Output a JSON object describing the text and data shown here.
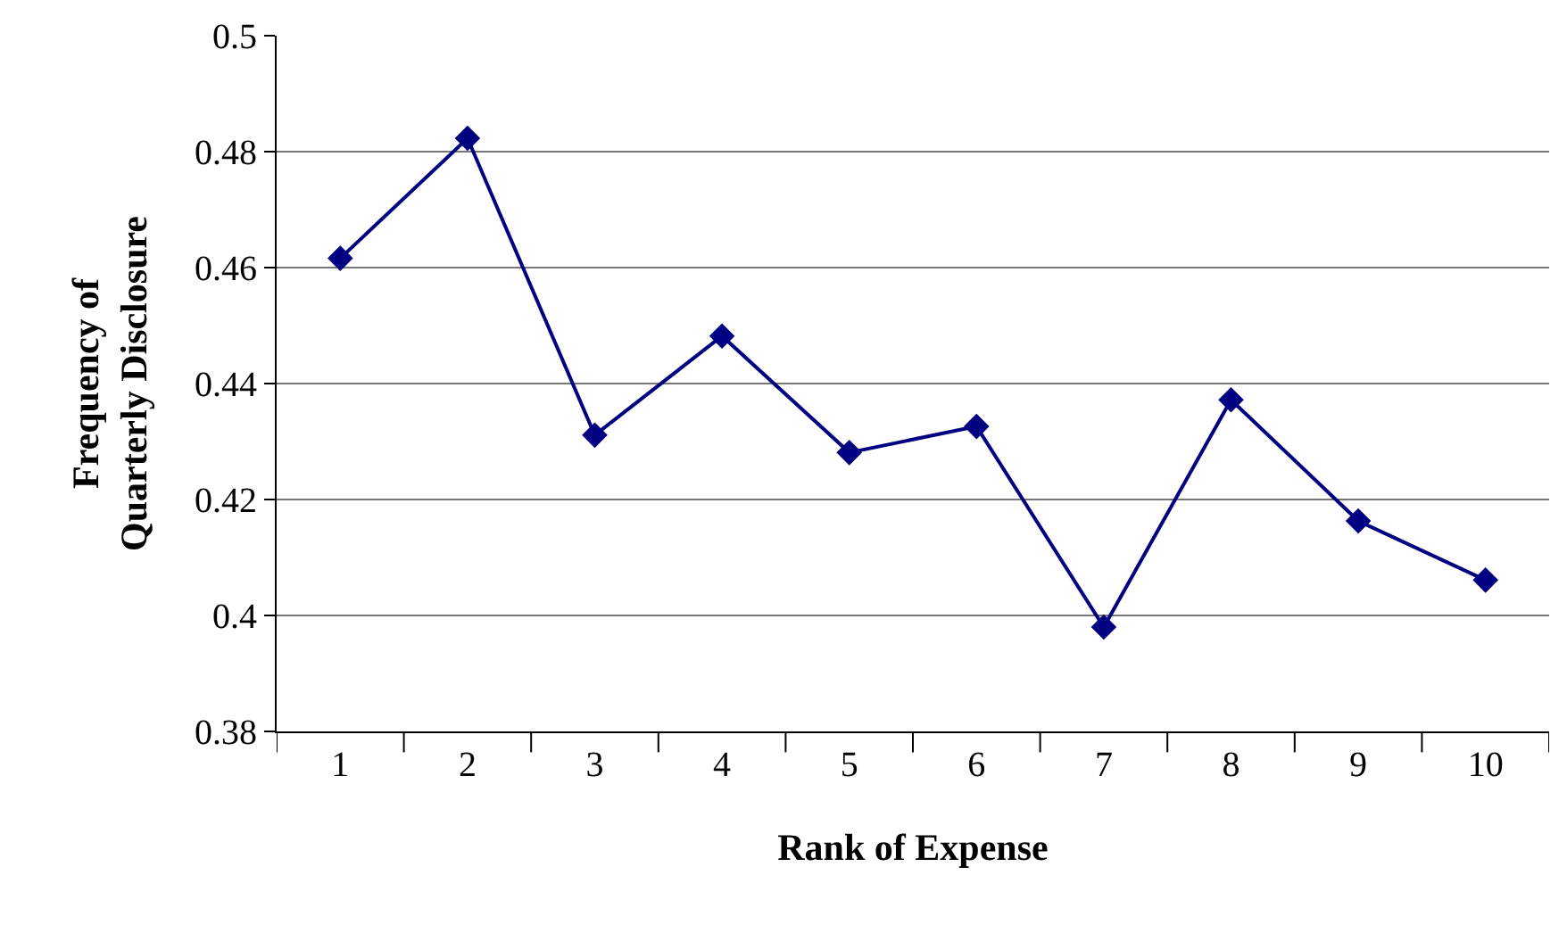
{
  "chart_data": {
    "type": "line",
    "xlabel": "Rank of Expense",
    "ylabel": "Frequency of\nQuarterly Disclosure",
    "categories": [
      "1",
      "2",
      "3",
      "4",
      "5",
      "6",
      "7",
      "8",
      "9",
      "10"
    ],
    "series": [
      {
        "color": "#000080",
        "values": [
          0.4616,
          0.4823,
          0.4311,
          0.4482,
          0.4281,
          0.4326,
          0.398,
          0.4372,
          0.4163,
          0.4061
        ]
      }
    ],
    "ylim": [
      0.38,
      0.5
    ],
    "yticks": [
      0.38,
      0.4,
      0.42,
      0.44,
      0.46,
      0.48,
      0.5
    ],
    "grid": "y",
    "marker": "diamond",
    "line_style": "solid",
    "legend": false
  }
}
